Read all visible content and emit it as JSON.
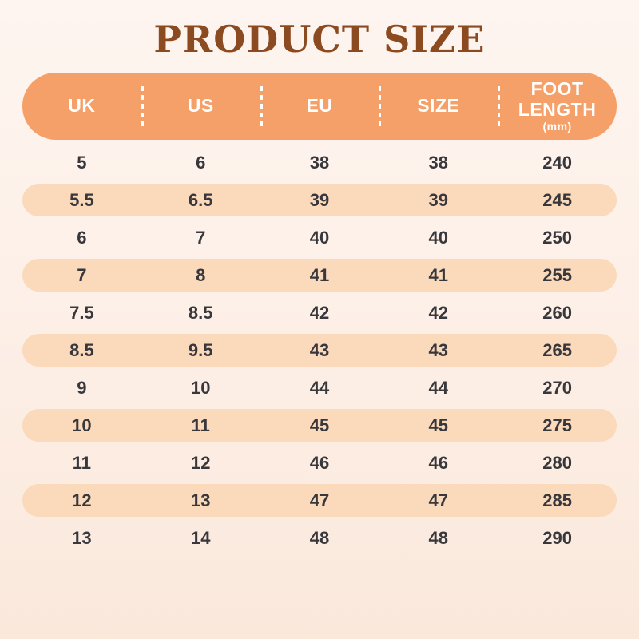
{
  "title": "PRODUCT SIZE",
  "header": {
    "uk": "UK",
    "us": "US",
    "eu": "EU",
    "size": "SIZE",
    "foot_line1": "FOOT",
    "foot_line2": "LENGTH",
    "foot_unit": "(mm)"
  },
  "colors": {
    "title_text": "#8c4a21",
    "header_pill": "#f5a068",
    "header_text": "#ffffff",
    "striped_row": "#fbd9bb",
    "row_text": "#38383c",
    "background_top": "#fef5f0",
    "background_bottom": "#fae8db"
  },
  "chart_data": {
    "type": "table",
    "title": "PRODUCT SIZE",
    "columns": [
      "UK",
      "US",
      "EU",
      "SIZE",
      "FOOT LENGTH (mm)"
    ],
    "rows": [
      [
        "5",
        "6",
        "38",
        "38",
        "240"
      ],
      [
        "5.5",
        "6.5",
        "39",
        "39",
        "245"
      ],
      [
        "6",
        "7",
        "40",
        "40",
        "250"
      ],
      [
        "7",
        "8",
        "41",
        "41",
        "255"
      ],
      [
        "7.5",
        "8.5",
        "42",
        "42",
        "260"
      ],
      [
        "8.5",
        "9.5",
        "43",
        "43",
        "265"
      ],
      [
        "9",
        "10",
        "44",
        "44",
        "270"
      ],
      [
        "10",
        "11",
        "45",
        "45",
        "275"
      ],
      [
        "11",
        "12",
        "46",
        "46",
        "280"
      ],
      [
        "12",
        "13",
        "47",
        "47",
        "285"
      ],
      [
        "13",
        "14",
        "48",
        "48",
        "290"
      ]
    ],
    "layout": {
      "striped_rows": "even rows (2nd, 4th, ...) have peach pill background",
      "header_style": "orange rounded pill with white dashed column dividers"
    }
  }
}
